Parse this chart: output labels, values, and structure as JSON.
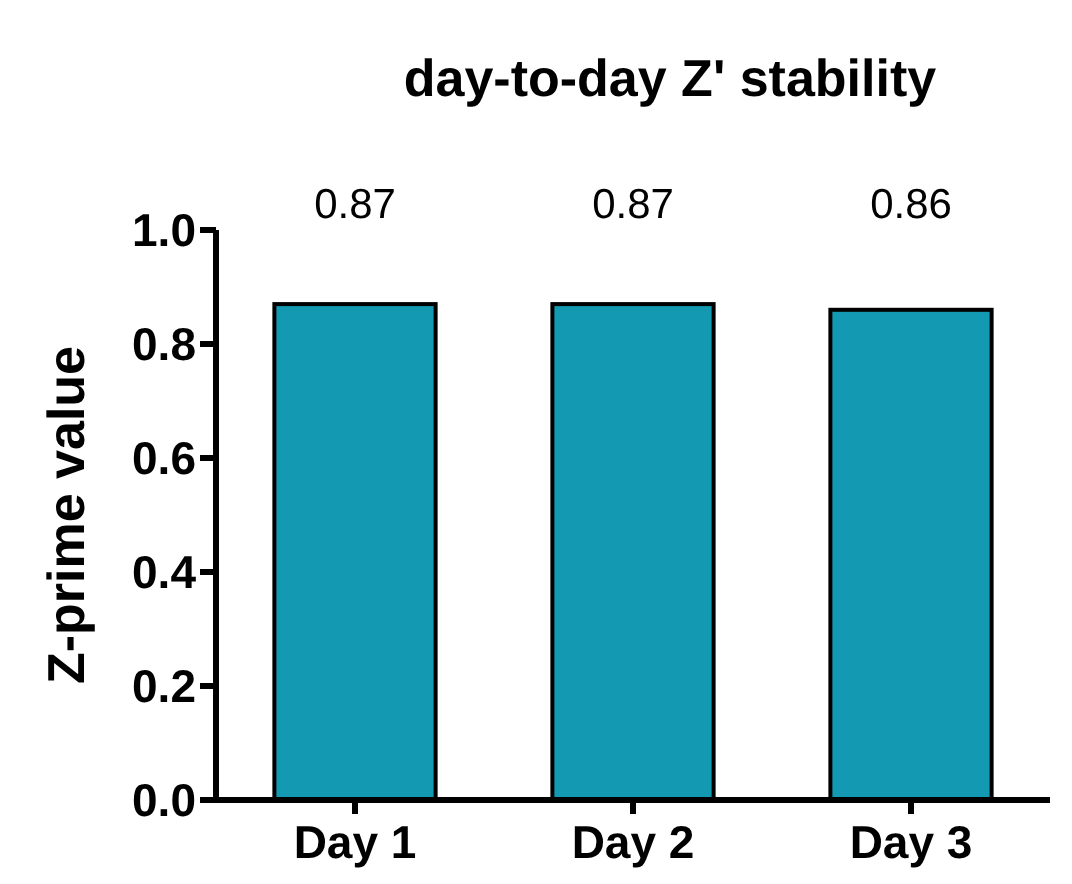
{
  "chart_data": {
    "type": "bar",
    "title": "day-to-day Z' stability",
    "ylabel": "Z-prime value",
    "categories": [
      "Day 1",
      "Day 2",
      "Day 3"
    ],
    "values": [
      0.87,
      0.87,
      0.86
    ],
    "color": "#1399b2",
    "ylim": [
      0,
      1
    ],
    "yticks": [
      {
        "value": 0,
        "label": "0.0"
      },
      {
        "value": 0.2,
        "label": "0.2"
      },
      {
        "value": 0.4,
        "label": "0.4"
      },
      {
        "value": 0.6,
        "label": "0.6"
      },
      {
        "value": 0.8,
        "label": "0.8"
      },
      {
        "value": 1,
        "label": "1.0"
      }
    ],
    "data_labels": true
  }
}
